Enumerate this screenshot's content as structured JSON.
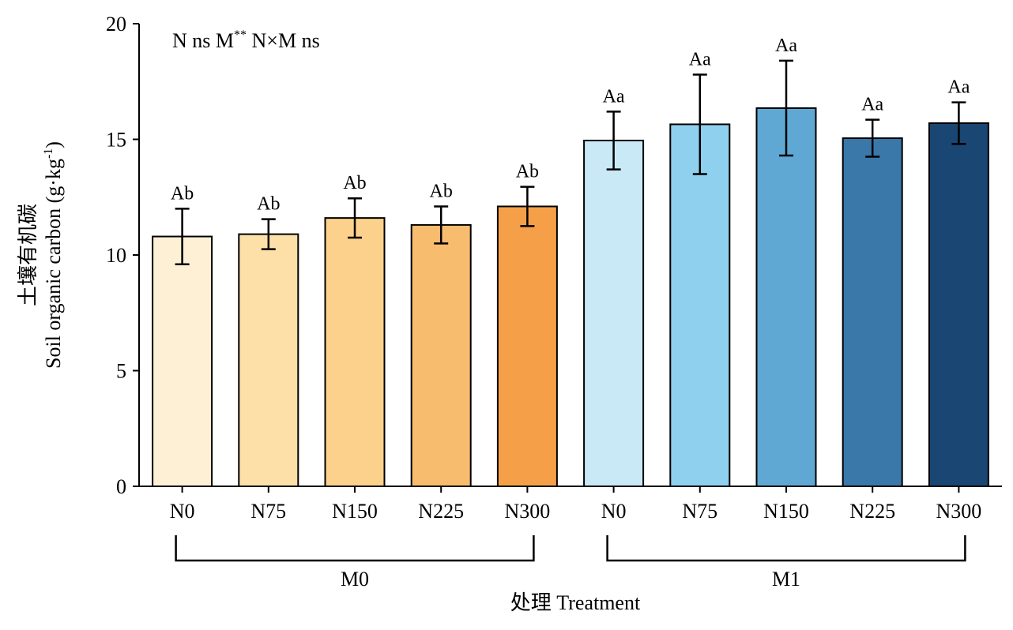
{
  "chart_data": {
    "type": "bar",
    "title": "",
    "stats_note": {
      "pre": "N ns M",
      "sup": "**",
      "post": " N×M ns"
    },
    "ylabel_cn": "土壤有机碳",
    "ylabel_en": "Soil organic carbon (g·kg",
    "ylabel_sup": "-1",
    "ylabel_close": ")",
    "xlabel": "处理 Treatment",
    "ylim": [
      0,
      20
    ],
    "yticks": [
      "0",
      "5",
      "10",
      "15",
      "20"
    ],
    "categories": [
      "N0",
      "N75",
      "N150",
      "N225",
      "N300",
      "N0",
      "N75",
      "N150",
      "N225",
      "N300"
    ],
    "groups": [
      {
        "name": "M0",
        "start": 0,
        "end": 4
      },
      {
        "name": "M1",
        "start": 5,
        "end": 9
      }
    ],
    "values": [
      10.8,
      10.9,
      11.6,
      11.3,
      12.1,
      14.95,
      15.65,
      16.35,
      15.05,
      15.7
    ],
    "errors": [
      1.2,
      0.65,
      0.85,
      0.8,
      0.85,
      1.25,
      2.15,
      2.05,
      0.8,
      0.9
    ],
    "significance": [
      "Ab",
      "Ab",
      "Ab",
      "Ab",
      "Ab",
      "Aa",
      "Aa",
      "Aa",
      "Aa",
      "Aa"
    ],
    "colors": [
      "#fdf0d5",
      "#fce0a8",
      "#fbd18c",
      "#f7bc6e",
      "#f5a049",
      "#c9e9f6",
      "#8fd0ef",
      "#5fa8d3",
      "#3a78aa",
      "#1a4674"
    ]
  }
}
